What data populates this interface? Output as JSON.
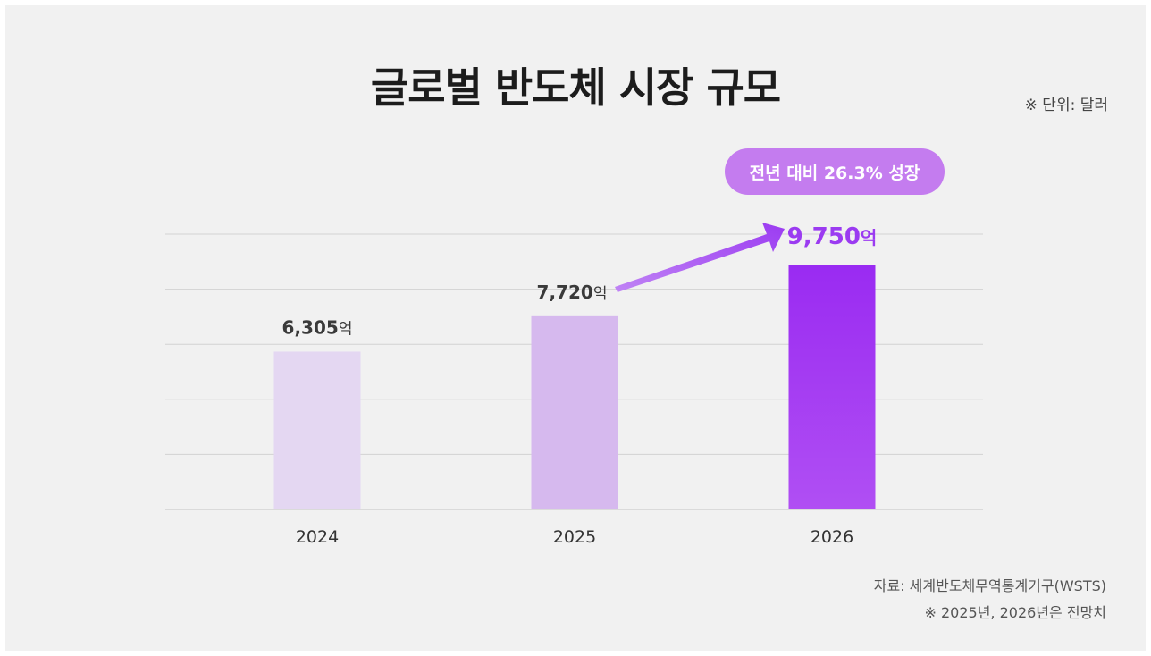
{
  "title": "글로벌 반도체 시장 규모",
  "unit_note": "※ 단위: 달러",
  "growth_badge": "전년 대비 26.3% 성장",
  "source": "자료: 세계반도체무역통계기구(WSTS)",
  "footnote": "※ 2025년, 2026년은 전망치",
  "colors": {
    "bar_2024": "#e4d7f2",
    "bar_2025": "#d6b9ee",
    "bar_2026_top": "#9a2bf2",
    "bar_2026_bottom": "#b04ff3",
    "accent": "#9b3bf1",
    "grid": "#d2d2d2"
  },
  "chart_data": {
    "type": "bar",
    "categories": [
      "2024",
      "2025",
      "2026"
    ],
    "values": [
      6305,
      7720,
      9750
    ],
    "value_labels": [
      {
        "number": "6,305",
        "suffix": "억"
      },
      {
        "number": "7,720",
        "suffix": "억"
      },
      {
        "number": "9,750",
        "suffix": "억"
      }
    ],
    "title": "글로벌 반도체 시장 규모",
    "xlabel": "",
    "ylabel": "",
    "ylim": [
      0,
      11000
    ],
    "grid": true,
    "annotation": "전년 대비 26.3% 성장"
  }
}
